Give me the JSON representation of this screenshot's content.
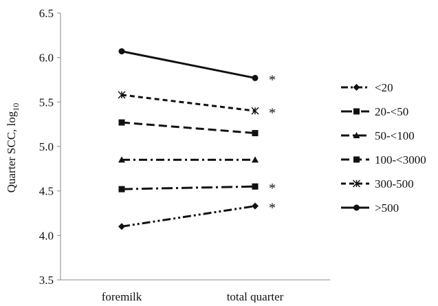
{
  "chart_data": {
    "type": "line",
    "ylabel": "Quarter SCC, log",
    "ylabel_sub": "10",
    "categories": [
      "foremilk",
      "total quarter"
    ],
    "ylim": [
      3.5,
      6.5
    ],
    "yticks": [
      "3.5",
      "4.0",
      "4.5",
      "5.0",
      "5.5",
      "6.0",
      "6.5"
    ],
    "grid": false,
    "legend_position": "right",
    "series": [
      {
        "name": "<20",
        "values": [
          4.1,
          4.33
        ],
        "marker": "diamond",
        "dash": "dash-dot-dot",
        "sig": "*"
      },
      {
        "name": "20-<50",
        "values": [
          4.52,
          4.55
        ],
        "marker": "square",
        "dash": "long-dash-dot",
        "sig": "*"
      },
      {
        "name": "50-<100",
        "values": [
          4.85,
          4.85
        ],
        "marker": "triangle",
        "dash": "dash-dot",
        "sig": ""
      },
      {
        "name": "100-<3000",
        "values": [
          5.27,
          5.15
        ],
        "marker": "square",
        "dash": "dash",
        "sig": ""
      },
      {
        "name": "300-500",
        "values": [
          5.58,
          5.4
        ],
        "marker": "star",
        "dash": "short-dash",
        "sig": "*"
      },
      {
        "name": ">500",
        "values": [
          6.07,
          5.77
        ],
        "marker": "circle",
        "dash": "solid",
        "sig": "*"
      }
    ],
    "line_color": "#111111",
    "axis_color": "#888888"
  }
}
